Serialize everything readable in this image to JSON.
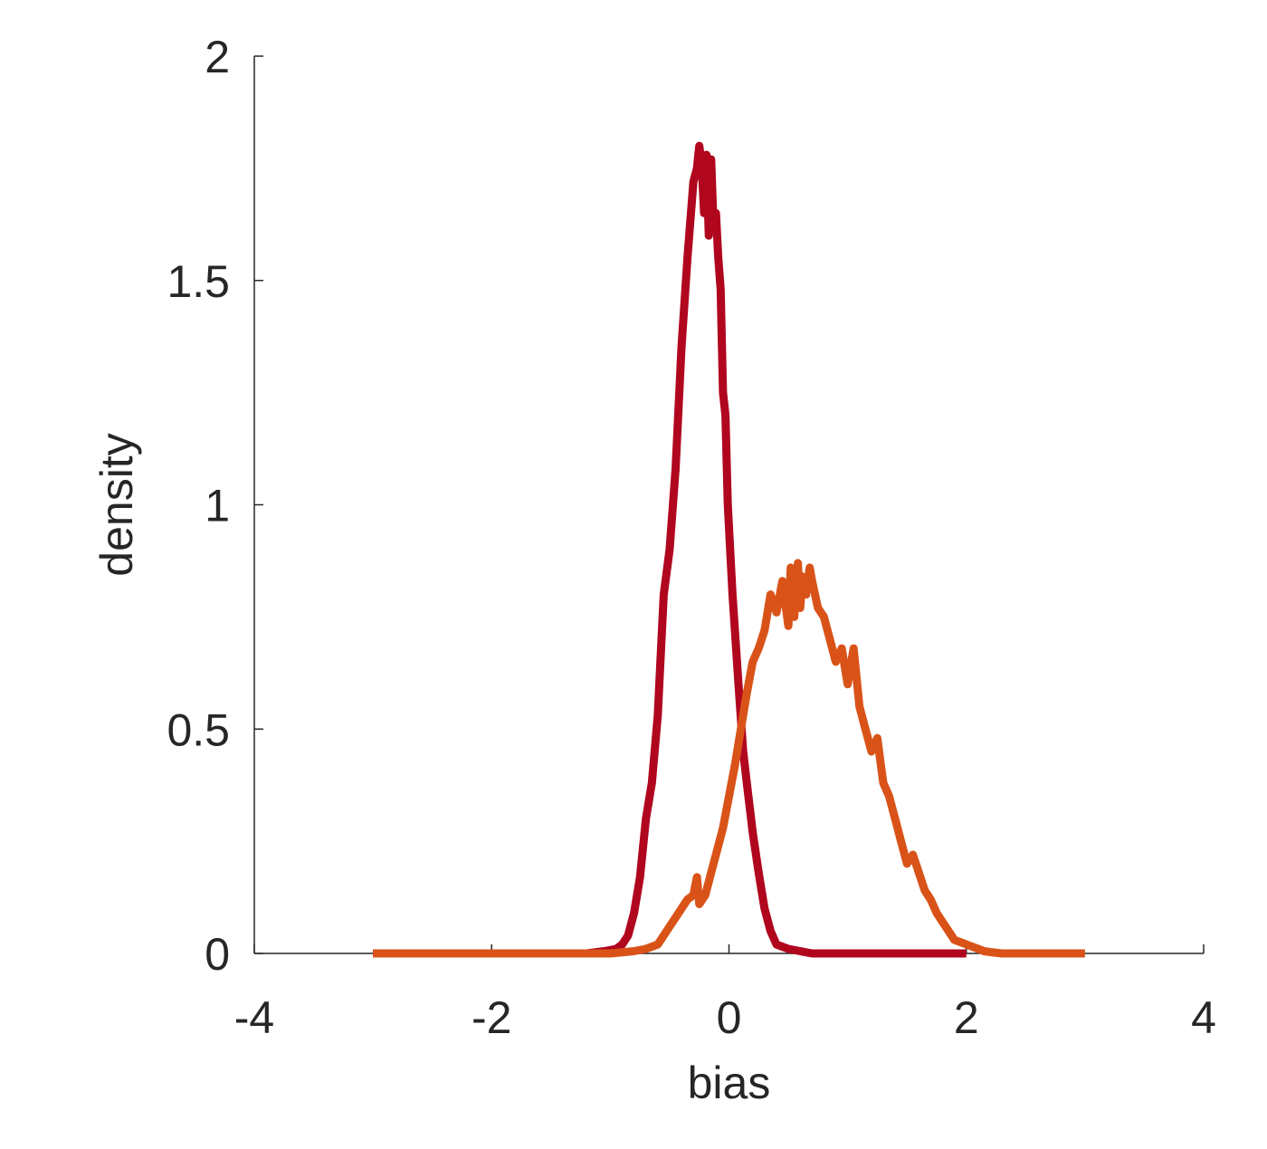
{
  "chart_data": {
    "type": "line",
    "title": "",
    "xlabel": "bias",
    "ylabel": "density",
    "xlim": [
      -4,
      4
    ],
    "ylim": [
      0,
      2
    ],
    "xticks": [
      -4,
      -2,
      0,
      2,
      4
    ],
    "xtick_labels": [
      "-4",
      "-2",
      "0",
      "2",
      "4"
    ],
    "yticks": [
      0,
      0.5,
      1,
      1.5,
      2
    ],
    "ytick_labels": [
      "0",
      "0.5",
      "1",
      "1.5",
      "2"
    ],
    "grid": false,
    "legend": "none",
    "series": [
      {
        "color": "#b0061e",
        "x": [
          -3.0,
          -1.2,
          -1.05,
          -0.95,
          -0.9,
          -0.85,
          -0.8,
          -0.75,
          -0.7,
          -0.65,
          -0.6,
          -0.55,
          -0.5,
          -0.45,
          -0.4,
          -0.35,
          -0.3,
          -0.27,
          -0.25,
          -0.23,
          -0.21,
          -0.19,
          -0.17,
          -0.15,
          -0.13,
          -0.11,
          -0.09,
          -0.07,
          -0.05,
          -0.03,
          -0.01,
          0.03,
          0.08,
          0.12,
          0.15,
          0.2,
          0.25,
          0.3,
          0.35,
          0.4,
          0.5,
          0.6,
          0.7,
          0.8,
          1.0,
          1.5,
          2.0
        ],
        "values": [
          0.0,
          0.0,
          0.005,
          0.01,
          0.02,
          0.04,
          0.09,
          0.17,
          0.3,
          0.38,
          0.53,
          0.8,
          0.9,
          1.08,
          1.35,
          1.55,
          1.72,
          1.75,
          1.8,
          1.76,
          1.65,
          1.78,
          1.6,
          1.77,
          1.62,
          1.65,
          1.55,
          1.48,
          1.25,
          1.2,
          1.0,
          0.8,
          0.6,
          0.45,
          0.38,
          0.27,
          0.18,
          0.1,
          0.05,
          0.02,
          0.01,
          0.005,
          0.0,
          0.0,
          0.0,
          0.0,
          0.0
        ]
      },
      {
        "color": "#d95319",
        "x": [
          -3.0,
          -1.0,
          -0.8,
          -0.7,
          -0.6,
          -0.55,
          -0.5,
          -0.45,
          -0.4,
          -0.35,
          -0.3,
          -0.27,
          -0.25,
          -0.2,
          -0.15,
          -0.1,
          -0.05,
          0.0,
          0.05,
          0.1,
          0.15,
          0.2,
          0.25,
          0.3,
          0.35,
          0.4,
          0.45,
          0.5,
          0.52,
          0.55,
          0.58,
          0.6,
          0.62,
          0.65,
          0.68,
          0.7,
          0.75,
          0.8,
          0.85,
          0.9,
          0.95,
          1.0,
          1.05,
          1.1,
          1.15,
          1.2,
          1.25,
          1.3,
          1.35,
          1.4,
          1.45,
          1.5,
          1.55,
          1.6,
          1.65,
          1.7,
          1.75,
          1.8,
          1.85,
          1.9,
          1.95,
          2.0,
          2.05,
          2.1,
          2.15,
          2.2,
          2.3,
          2.5,
          3.0
        ],
        "values": [
          0.0,
          0.0,
          0.005,
          0.01,
          0.02,
          0.04,
          0.06,
          0.08,
          0.1,
          0.12,
          0.13,
          0.17,
          0.11,
          0.13,
          0.18,
          0.23,
          0.28,
          0.35,
          0.42,
          0.5,
          0.58,
          0.65,
          0.68,
          0.72,
          0.8,
          0.76,
          0.83,
          0.73,
          0.86,
          0.75,
          0.87,
          0.77,
          0.84,
          0.8,
          0.86,
          0.83,
          0.77,
          0.75,
          0.7,
          0.65,
          0.68,
          0.6,
          0.68,
          0.55,
          0.5,
          0.45,
          0.48,
          0.38,
          0.35,
          0.3,
          0.25,
          0.2,
          0.22,
          0.18,
          0.14,
          0.12,
          0.09,
          0.07,
          0.05,
          0.03,
          0.025,
          0.02,
          0.015,
          0.01,
          0.005,
          0.003,
          0.0,
          0.0,
          0.0
        ]
      }
    ]
  }
}
